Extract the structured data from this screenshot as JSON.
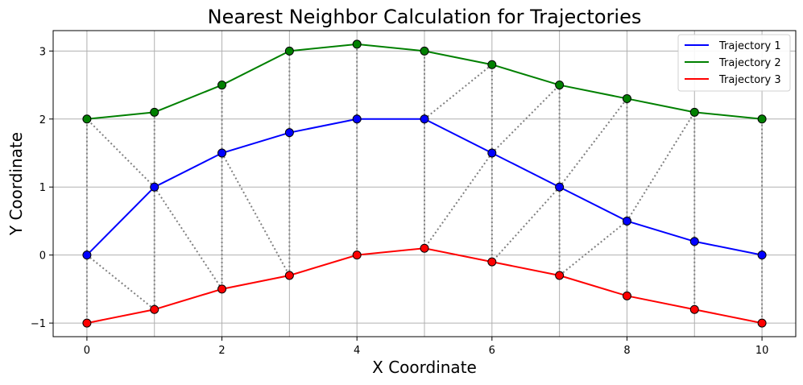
{
  "chart_data": {
    "type": "line",
    "title": "Nearest Neighbor Calculation for Trajectories",
    "xlabel": "X Coordinate",
    "ylabel": "Y Coordinate",
    "xlim": [
      -0.5,
      10.5
    ],
    "ylim": [
      -1.2,
      3.3
    ],
    "grid": true,
    "legend_position": "top-right",
    "x_ticks": [
      0,
      2,
      4,
      6,
      8,
      10
    ],
    "y_ticks": [
      -1,
      0,
      1,
      2,
      3
    ],
    "x_tick_labels": [
      "0",
      "2",
      "4",
      "6",
      "8",
      "10"
    ],
    "y_tick_labels": [
      "−1",
      "0",
      "1",
      "2",
      "3"
    ],
    "x": [
      0,
      1,
      2,
      3,
      4,
      5,
      6,
      7,
      8,
      9,
      10
    ],
    "series": [
      {
        "name": "Trajectory 1",
        "color": "#0000ff",
        "values": [
          0,
          1,
          1.5,
          1.8,
          2,
          2,
          1.5,
          1,
          0.5,
          0.2,
          0
        ]
      },
      {
        "name": "Trajectory 2",
        "color": "#008000",
        "values": [
          2,
          2.1,
          2.5,
          3,
          3.1,
          3,
          2.8,
          2.5,
          2.3,
          2.1,
          2
        ]
      },
      {
        "name": "Trajectory 3",
        "color": "#ff0000",
        "values": [
          -1,
          -0.8,
          -0.5,
          -0.3,
          0,
          0.1,
          -0.1,
          -0.3,
          -0.6,
          -0.8,
          -1
        ]
      }
    ],
    "nearest_neighbor_links": [
      {
        "from": [
          0,
          0
        ],
        "to": [
          0,
          2
        ]
      },
      {
        "from": [
          0,
          0
        ],
        "to": [
          0,
          -1
        ]
      },
      {
        "from": [
          0,
          0
        ],
        "to": [
          1,
          -0.8
        ]
      },
      {
        "from": [
          1,
          1
        ],
        "to": [
          0,
          2
        ]
      },
      {
        "from": [
          1,
          1
        ],
        "to": [
          1,
          2.1
        ]
      },
      {
        "from": [
          1,
          1
        ],
        "to": [
          2,
          -0.5
        ]
      },
      {
        "from": [
          1,
          1
        ],
        "to": [
          1,
          -0.8
        ]
      },
      {
        "from": [
          2,
          1.5
        ],
        "to": [
          2,
          2.5
        ]
      },
      {
        "from": [
          2,
          1.5
        ],
        "to": [
          2,
          -0.5
        ]
      },
      {
        "from": [
          2,
          1.5
        ],
        "to": [
          3,
          -0.3
        ]
      },
      {
        "from": [
          3,
          1.8
        ],
        "to": [
          3,
          3
        ]
      },
      {
        "from": [
          3,
          1.8
        ],
        "to": [
          3,
          -0.3
        ]
      },
      {
        "from": [
          4,
          2
        ],
        "to": [
          4,
          3.1
        ]
      },
      {
        "from": [
          4,
          2
        ],
        "to": [
          4,
          0
        ]
      },
      {
        "from": [
          5,
          2
        ],
        "to": [
          5,
          3
        ]
      },
      {
        "from": [
          5,
          2
        ],
        "to": [
          5,
          0.1
        ]
      },
      {
        "from": [
          5,
          2
        ],
        "to": [
          6,
          2.8
        ]
      },
      {
        "from": [
          6,
          1.5
        ],
        "to": [
          6,
          2.8
        ]
      },
      {
        "from": [
          6,
          1.5
        ],
        "to": [
          5,
          0.1
        ]
      },
      {
        "from": [
          6,
          1.5
        ],
        "to": [
          6,
          -0.1
        ]
      },
      {
        "from": [
          6,
          1.5
        ],
        "to": [
          7,
          2.5
        ]
      },
      {
        "from": [
          7,
          1
        ],
        "to": [
          7,
          2.5
        ]
      },
      {
        "from": [
          7,
          1
        ],
        "to": [
          6,
          -0.1
        ]
      },
      {
        "from": [
          7,
          1
        ],
        "to": [
          7,
          -0.3
        ]
      },
      {
        "from": [
          7,
          1
        ],
        "to": [
          8,
          2.3
        ]
      },
      {
        "from": [
          8,
          0.5
        ],
        "to": [
          8,
          2.3
        ]
      },
      {
        "from": [
          8,
          0.5
        ],
        "to": [
          7,
          -0.3
        ]
      },
      {
        "from": [
          8,
          0.5
        ],
        "to": [
          8,
          -0.6
        ]
      },
      {
        "from": [
          8,
          0.5
        ],
        "to": [
          9,
          2.1
        ]
      },
      {
        "from": [
          9,
          0.2
        ],
        "to": [
          9,
          2.1
        ]
      },
      {
        "from": [
          9,
          0.2
        ],
        "to": [
          9,
          -0.8
        ]
      },
      {
        "from": [
          10,
          0
        ],
        "to": [
          10,
          2
        ]
      },
      {
        "from": [
          10,
          0
        ],
        "to": [
          10,
          -1
        ]
      }
    ]
  }
}
